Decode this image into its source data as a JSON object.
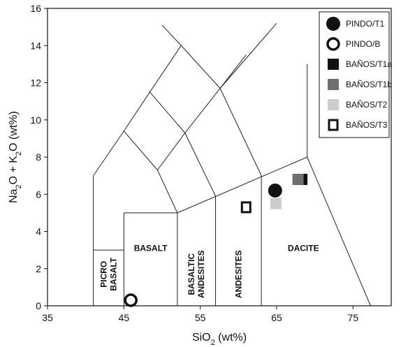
{
  "chart_data": {
    "type": "scatter",
    "xlabel": "SiO2 (wt%)",
    "ylabel": "Na2O + K2O (wt%)",
    "xlim": [
      35,
      80
    ],
    "ylim": [
      0,
      16
    ],
    "xticks": [
      35,
      45,
      55,
      65,
      75
    ],
    "yticks": [
      0,
      2,
      4,
      6,
      8,
      10,
      12,
      14,
      16
    ],
    "grid": false,
    "legend_position": "top-right",
    "fields": [
      {
        "name": "PICRO BASALT",
        "lines": [
          "PICRO",
          "BASALT"
        ],
        "orientation": "vertical"
      },
      {
        "name": "BASALT",
        "lines": [
          "BASALT"
        ],
        "orientation": "horizontal"
      },
      {
        "name": "BASALTIC ANDESITES",
        "lines": [
          "BASALTIC",
          "ANDESITES"
        ],
        "orientation": "vertical"
      },
      {
        "name": "ANDESITES",
        "lines": [
          "ANDESITES"
        ],
        "orientation": "vertical"
      },
      {
        "name": "DACITE",
        "lines": [
          "DACITE"
        ],
        "orientation": "horizontal"
      }
    ],
    "series": [
      {
        "name": "PINDO/T1",
        "marker": "filled-circle",
        "color": "#111111",
        "points": [
          [
            64.8,
            6.2
          ]
        ]
      },
      {
        "name": "PINDO/B",
        "marker": "open-circle",
        "color": "#111111",
        "points": [
          [
            45.9,
            0.3
          ]
        ]
      },
      {
        "name": "BAÑOS/T1a",
        "marker": "filled-square",
        "color": "#111111",
        "points": [
          [
            68.3,
            6.8
          ]
        ]
      },
      {
        "name": "BAÑOS/T1b",
        "marker": "filled-square",
        "color": "#6e6e6e",
        "points": [
          [
            67.8,
            6.8
          ]
        ]
      },
      {
        "name": "BAÑOS/T2",
        "marker": "filled-square",
        "color": "#cccccc",
        "points": [
          [
            64.9,
            5.5
          ]
        ]
      },
      {
        "name": "BAÑOS/T3",
        "marker": "open-square",
        "color": "#111111",
        "points": [
          [
            61.0,
            5.3
          ]
        ]
      }
    ]
  }
}
